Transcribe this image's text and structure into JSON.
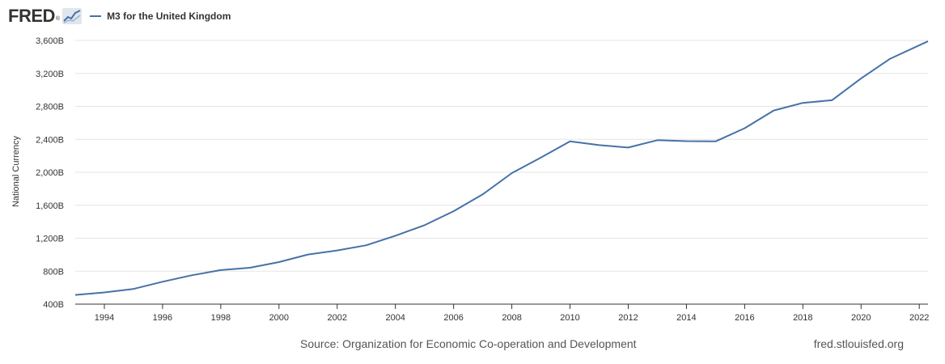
{
  "header": {
    "logo_text": "FRED",
    "logo_dot": "®",
    "logo_icon": "fred-graph-icon",
    "legend_label": "M3 for the United Kingdom"
  },
  "footer": {
    "source": "Source: Organization for Economic Co-operation and Development",
    "site": "fred.stlouisfed.org"
  },
  "colors": {
    "series": "#4572a7",
    "grid": "#e6e6e6",
    "axis": "#333333"
  },
  "chart_data": {
    "type": "line",
    "title": "",
    "xlabel": "",
    "ylabel": "National Currency",
    "xlim": [
      1993,
      2022.3
    ],
    "ylim": [
      400,
      3600
    ],
    "grid": true,
    "legend_position": "top-left",
    "yticks": [
      400,
      800,
      1200,
      1600,
      2000,
      2400,
      2800,
      3200,
      3600
    ],
    "ytick_labels": [
      "400B",
      "800B",
      "1,200B",
      "1,600B",
      "2,000B",
      "2,400B",
      "2,800B",
      "3,200B",
      "3,600B"
    ],
    "xticks": [
      1994,
      1996,
      1998,
      2000,
      2002,
      2004,
      2006,
      2008,
      2010,
      2012,
      2014,
      2016,
      2018,
      2020,
      2022
    ],
    "xtick_labels": [
      "1994",
      "1996",
      "1998",
      "2000",
      "2002",
      "2004",
      "2006",
      "2008",
      "2010",
      "2012",
      "2014",
      "2016",
      "2018",
      "2020",
      "2022"
    ],
    "series": [
      {
        "name": "M3 for the United Kingdom",
        "x": [
          1993,
          1994,
          1995,
          1996,
          1997,
          1998,
          1999,
          2000,
          2001,
          2002,
          2003,
          2004,
          2005,
          2006,
          2007,
          2008,
          2009,
          2010,
          2011,
          2012,
          2013,
          2014,
          2015,
          2016,
          2017,
          2018,
          2019,
          2020,
          2021,
          2022.3
        ],
        "y": [
          512,
          542,
          585,
          672,
          750,
          813,
          842,
          910,
          1003,
          1052,
          1115,
          1230,
          1358,
          1528,
          1732,
          1990,
          2180,
          2375,
          2330,
          2300,
          2390,
          2378,
          2375,
          2535,
          2750,
          2842,
          2875,
          3140,
          3378,
          3590
        ]
      }
    ]
  }
}
